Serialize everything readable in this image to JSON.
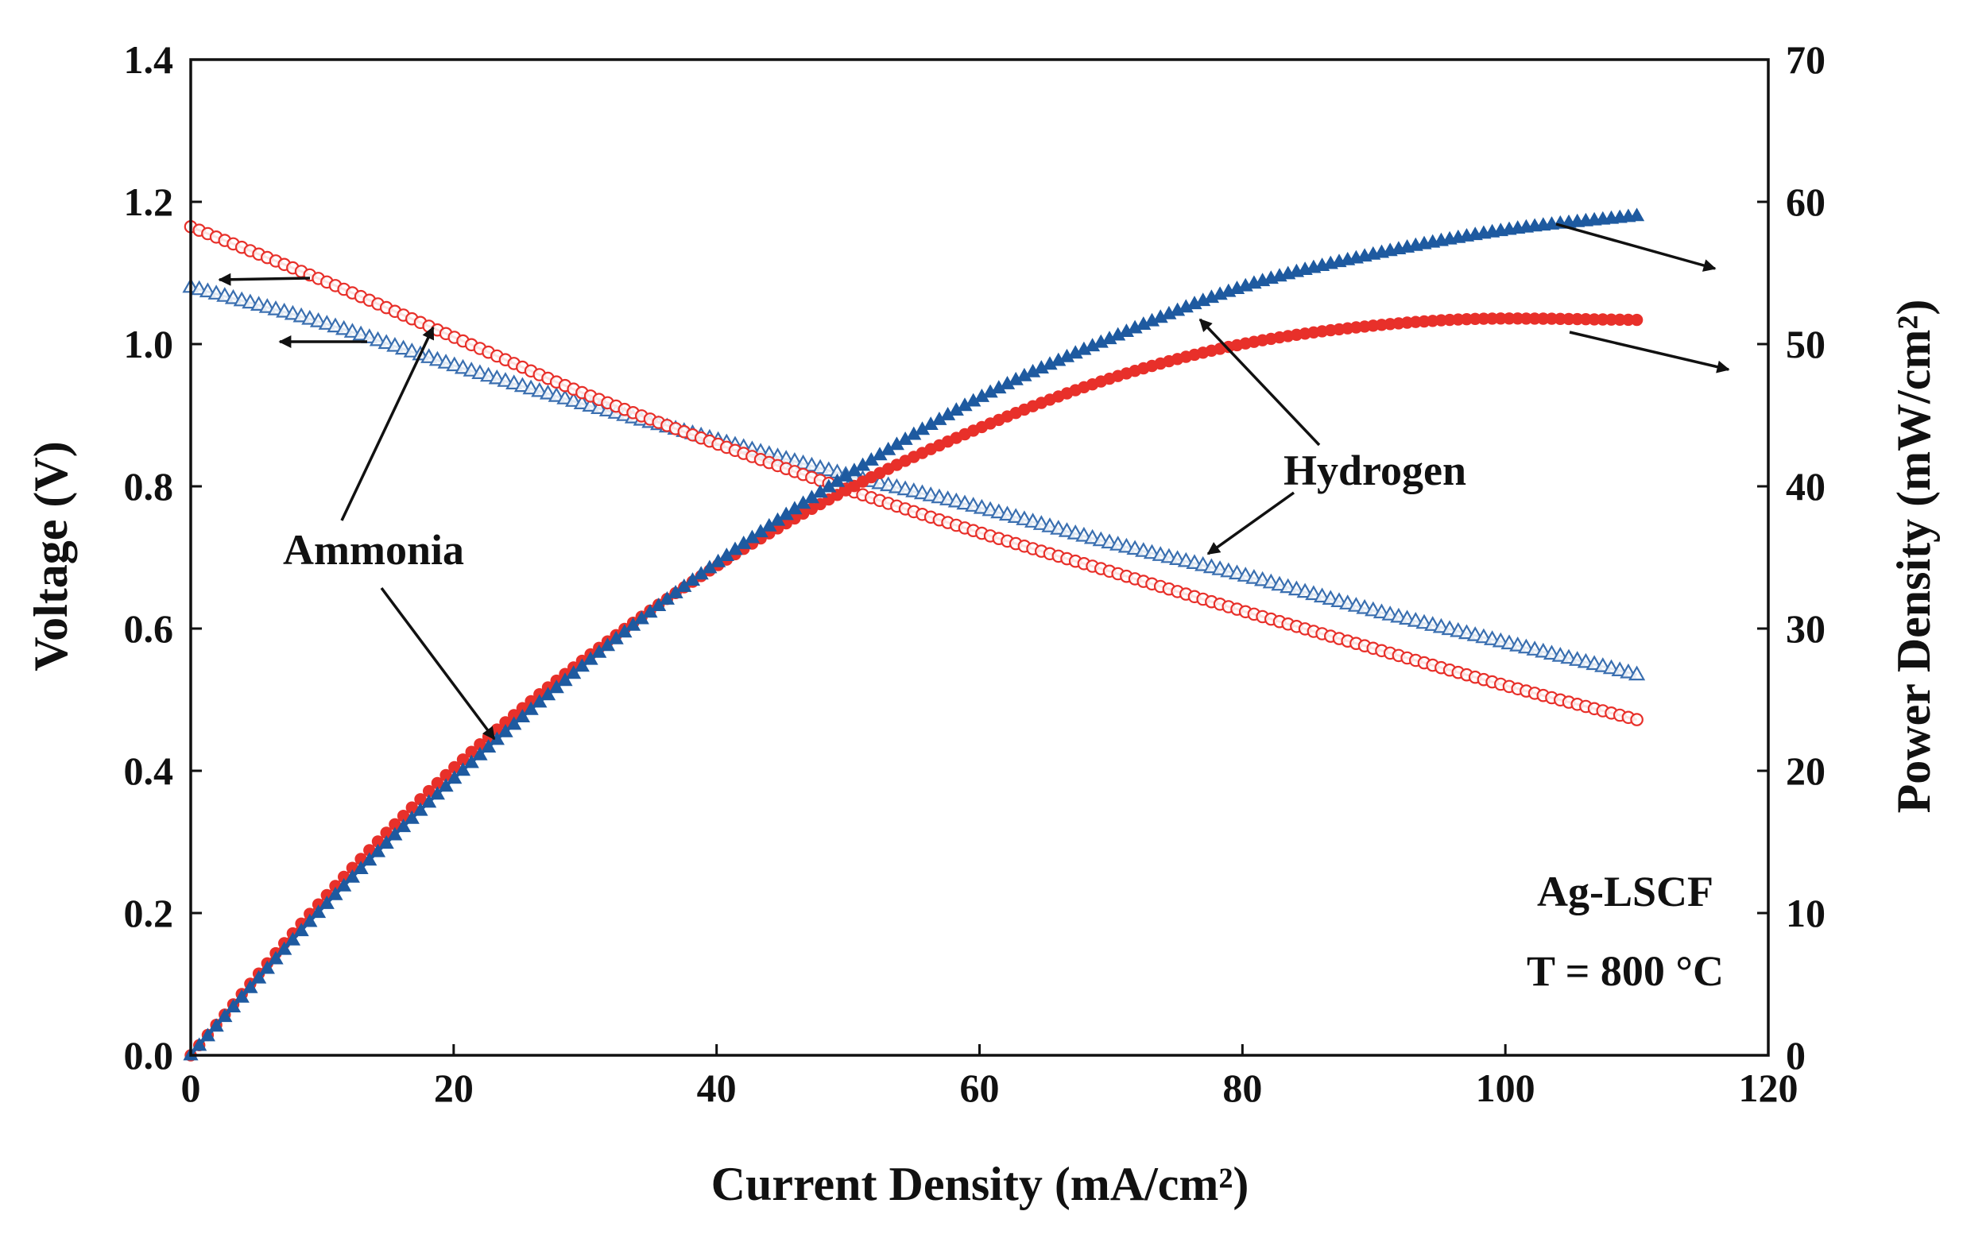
{
  "chart_data": {
    "type": "line",
    "title": "",
    "xlabel": "Current Density (mA/cm²)",
    "ylabel_left": "Voltage (V)",
    "ylabel_right": "Power Density (mW/cm²)",
    "xlim": [
      0,
      120
    ],
    "ylim_left": [
      0,
      1.4
    ],
    "ylim_right": [
      0,
      70
    ],
    "x_ticks": [
      "0",
      "20",
      "40",
      "60",
      "80",
      "100",
      "120"
    ],
    "y_left_ticks": [
      "0.0",
      "0.2",
      "0.4",
      "0.6",
      "0.8",
      "1.0",
      "1.2",
      "1.4"
    ],
    "y_right_ticks": [
      "0",
      "10",
      "20",
      "30",
      "40",
      "50",
      "60",
      "70"
    ],
    "grid": false,
    "series": [
      {
        "name": "Hydrogen voltage",
        "fuel": "Hydrogen",
        "quantity": "voltage",
        "axis": "left",
        "marker": "triangle-open",
        "color": "#3a6fb0",
        "x": [
          0,
          10,
          20,
          30,
          40,
          50,
          60,
          70,
          80,
          90,
          100,
          110
        ],
        "y": [
          1.08,
          1.03,
          0.97,
          0.915,
          0.865,
          0.815,
          0.77,
          0.72,
          0.675,
          0.625,
          0.58,
          0.535
        ]
      },
      {
        "name": "Ammonia voltage",
        "fuel": "Ammonia",
        "quantity": "voltage",
        "axis": "left",
        "marker": "circle-open",
        "color": "#e8302a",
        "x": [
          0,
          10,
          20,
          30,
          40,
          50,
          60,
          70,
          80,
          90,
          100,
          110
        ],
        "y": [
          1.165,
          1.09,
          1.01,
          0.93,
          0.86,
          0.795,
          0.735,
          0.68,
          0.625,
          0.572,
          0.52,
          0.472
        ]
      },
      {
        "name": "Hydrogen power density",
        "fuel": "Hydrogen",
        "quantity": "power",
        "axis": "right",
        "marker": "triangle-filled",
        "color": "#1e5aa0",
        "x": [
          0,
          10,
          20,
          30,
          40,
          50,
          60,
          70,
          80,
          90,
          100,
          110
        ],
        "y": [
          0,
          10.3,
          19.4,
          27.5,
          34.6,
          40.8,
          46.2,
          50.4,
          54,
          56.3,
          58,
          59
        ]
      },
      {
        "name": "Ammonia power density",
        "fuel": "Ammonia",
        "quantity": "power",
        "axis": "right",
        "marker": "circle-filled",
        "color": "#e8302a",
        "x": [
          0,
          10,
          20,
          30,
          40,
          50,
          60,
          70,
          80,
          90,
          100,
          110
        ],
        "y": [
          0,
          10.9,
          20.2,
          27.9,
          34.4,
          39.8,
          44.1,
          47.6,
          50,
          51.3,
          51.8,
          51.7
        ]
      }
    ],
    "annotations": [
      {
        "text": "Hydrogen"
      },
      {
        "text": "Ammonia"
      },
      {
        "text": "Ag-LSCF"
      },
      {
        "text": "T = 800 °C"
      }
    ]
  }
}
